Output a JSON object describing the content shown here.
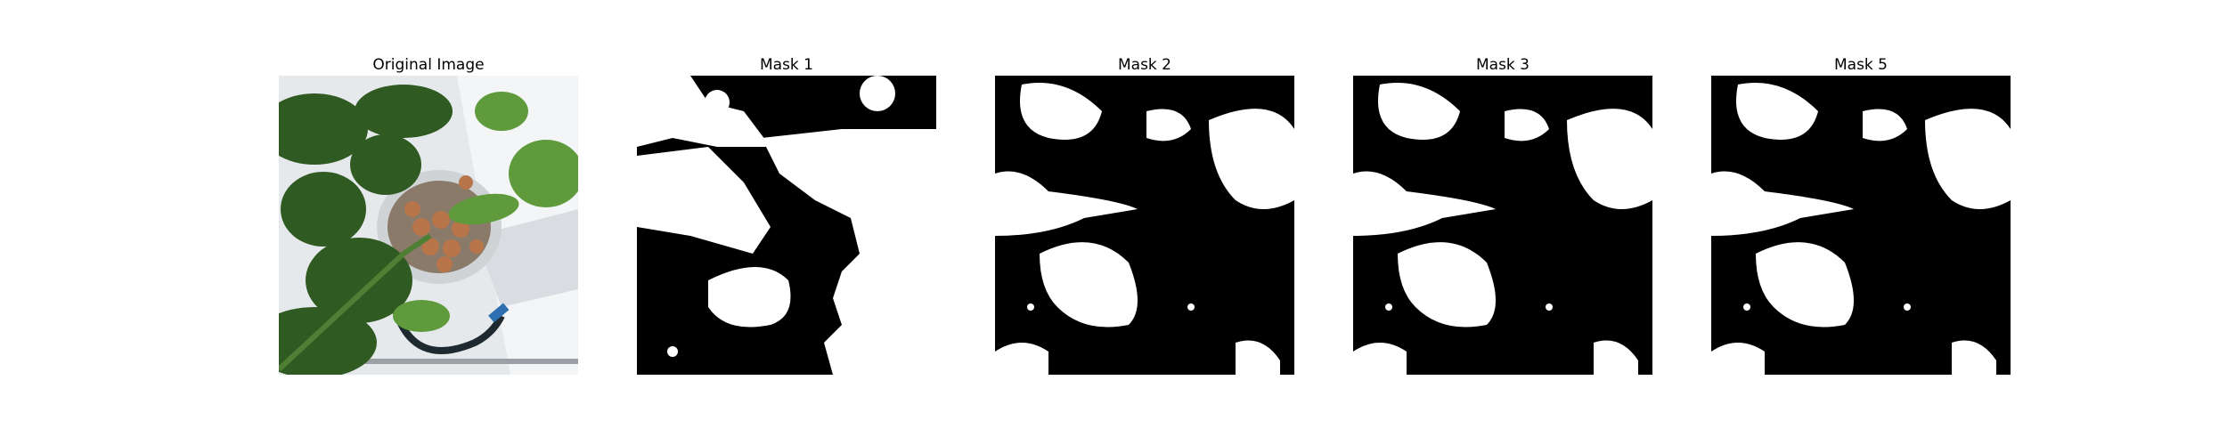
{
  "panels": [
    {
      "title": "Original Image"
    },
    {
      "title": "Mask 1"
    },
    {
      "title": "Mask 2"
    },
    {
      "title": "Mask 3"
    },
    {
      "title": "Mask 5"
    }
  ],
  "colors": {
    "mask_foreground": "#ffffff",
    "mask_background": "#000000",
    "leaf_dark": "#2f5a22",
    "leaf_light": "#5f9a3c",
    "tray": "#e9ecef",
    "pebbles": "#b9754a"
  }
}
